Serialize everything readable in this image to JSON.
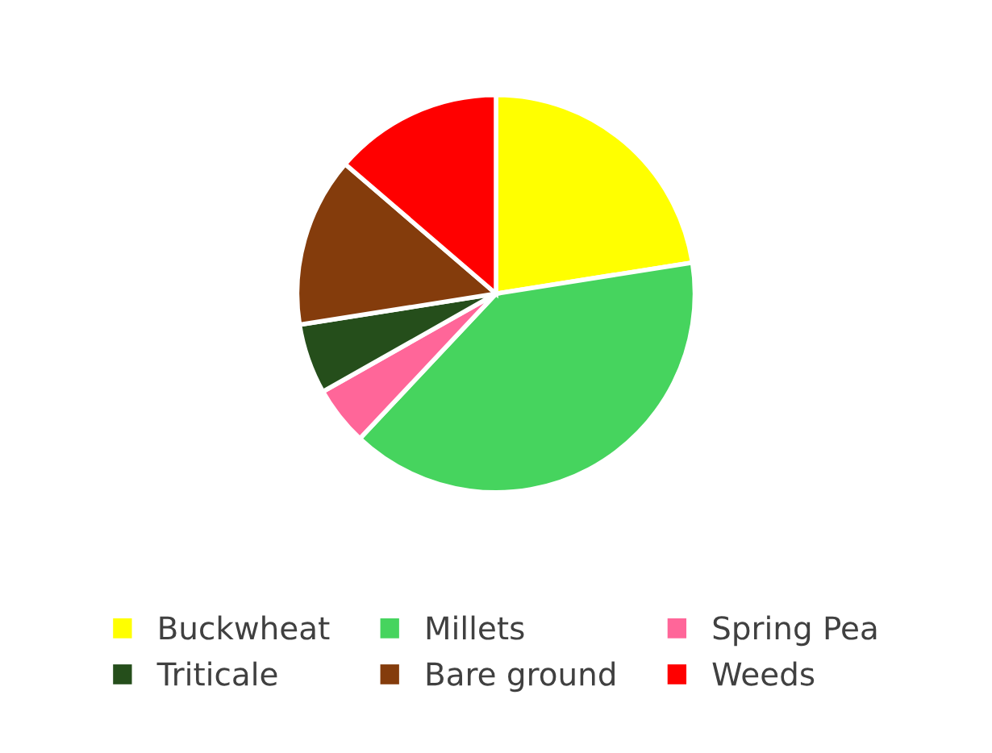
{
  "chart_data": {
    "type": "pie",
    "categories": [
      "Buckwheat",
      "Millets",
      "Spring Pea",
      "Triticale",
      "Bare ground",
      "Weeds"
    ],
    "values": [
      22.5,
      39.5,
      4.8,
      5.7,
      13.8,
      13.7
    ],
    "colors": [
      "#ffff00",
      "#46d45e",
      "#ff6699",
      "#254e1b",
      "#843c0c",
      "#ff0000"
    ],
    "legend": "bottom"
  }
}
